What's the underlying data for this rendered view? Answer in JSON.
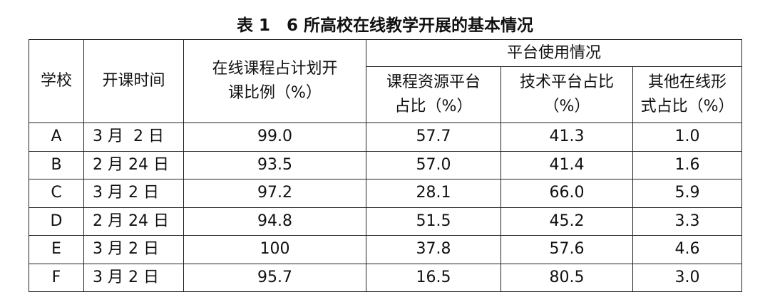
{
  "title": "表 1　6 所高校在线教学开展的基本情况",
  "table": {
    "header": {
      "school": "学校",
      "start": "开课时间",
      "ratio": [
        "在线课程占计划开",
        "课比例（%）"
      ],
      "platform": "平台使用情况",
      "sub": [
        [
          "课程资源平台",
          "占比（%）"
        ],
        [
          "技术平台占比",
          "（%）"
        ],
        [
          "其他在线形",
          "式占比（%）"
        ]
      ]
    },
    "rows": [
      [
        "A",
        "3 月  2 日",
        "99.0",
        "57.7",
        "41.3",
        "1.0"
      ],
      [
        "B",
        "2 月 24 日",
        "93.5",
        "57.0",
        "41.4",
        "1.6"
      ],
      [
        "C",
        "3 月 2 日",
        "97.2",
        "28.1",
        "66.0",
        "5.9"
      ],
      [
        "D",
        "2 月 24 日",
        "94.8",
        "51.5",
        "45.2",
        "3.3"
      ],
      [
        "E",
        "3 月 2 日",
        "100",
        "37.8",
        "57.6",
        "4.6"
      ],
      [
        "F",
        "3 月 2 日",
        "95.7",
        "16.5",
        "80.5",
        "3.0"
      ]
    ]
  }
}
